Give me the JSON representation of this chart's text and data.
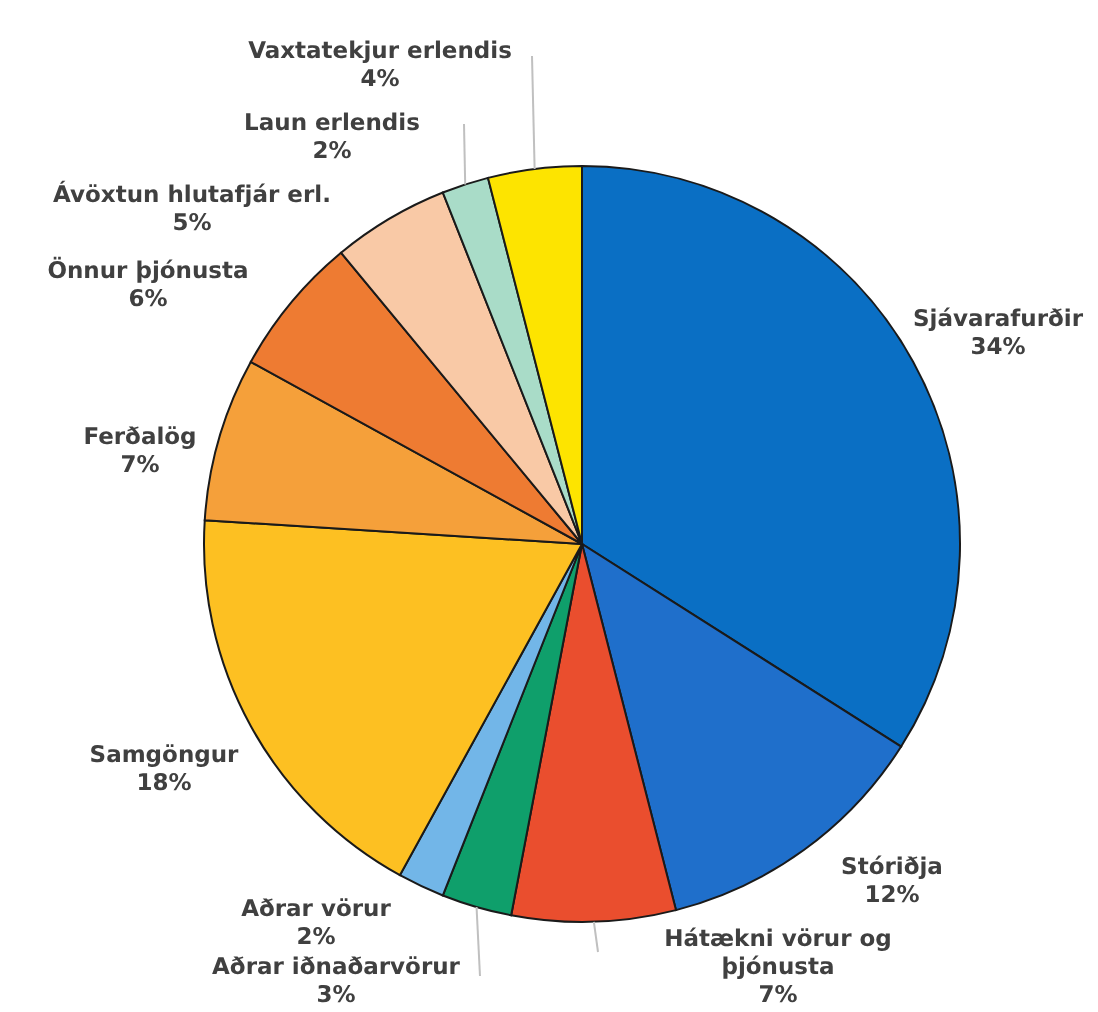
{
  "chart_data": {
    "type": "pie",
    "categories": [
      "Sjávarafurðir",
      "Stóriðja",
      "Hátækni vörur og þjónusta",
      "Aðrar iðnaðarvörur",
      "Aðrar vörur",
      "Samgöngur",
      "Ferðalög",
      "Önnur þjónusta",
      "Ávöxtun hlutafjár erl.",
      "Laun erlendis",
      "Vaxtatekjur erlendis"
    ],
    "values": [
      34,
      12,
      7,
      3,
      2,
      18,
      7,
      6,
      5,
      2,
      4
    ],
    "value_labels": [
      "34%",
      "12%",
      "7%",
      "3%",
      "2%",
      "18%",
      "7%",
      "6%",
      "5%",
      "2%",
      "4%"
    ],
    "colors": [
      "#0a6fc4",
      "#1f6fcb",
      "#ea4e2e",
      "#0f9f6b",
      "#72b6e8",
      "#fdc022",
      "#f5a03a",
      "#ee7b32",
      "#f9c9a6",
      "#a9dcc8",
      "#fde400"
    ]
  }
}
